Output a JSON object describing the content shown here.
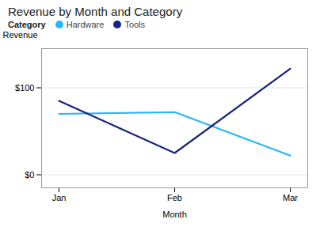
{
  "chart_data": {
    "type": "line",
    "title": "Revenue by Month and Category",
    "xlabel": "Month",
    "ylabel": "Revenue",
    "legend_title": "Category",
    "categories": [
      "Jan",
      "Feb",
      "Mar"
    ],
    "series": [
      {
        "name": "Hardware",
        "color": "#29b6f6",
        "values": [
          70,
          72,
          22
        ]
      },
      {
        "name": "Tools",
        "color": "#1a237e",
        "values": [
          85,
          25,
          122
        ]
      }
    ],
    "ylim": [
      -15,
      145
    ],
    "yticks": [
      {
        "value": 0,
        "label": "$0"
      },
      {
        "value": 100,
        "label": "$100"
      }
    ],
    "grid": true,
    "legend": "top"
  }
}
